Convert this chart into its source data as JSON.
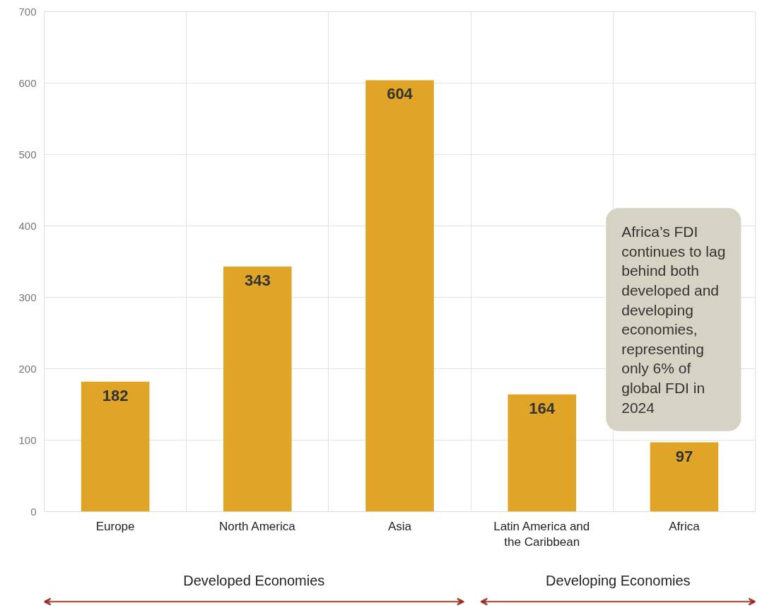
{
  "chart_data": {
    "type": "bar",
    "categories": [
      "Europe",
      "North America",
      "Asia",
      "Latin America and the Caribbean",
      "Africa"
    ],
    "values": [
      182,
      343,
      604,
      164,
      97
    ],
    "color": "#e0a526",
    "data_labels": true,
    "ylim": [
      0,
      700
    ],
    "yticks": [
      0,
      100,
      200,
      300,
      400,
      500,
      600,
      700
    ],
    "grid": true,
    "annotations": [
      "Africa’s FDI continues to lag behind both developed and developing economies, representing only 6% of global FDI in 2024",
      "Developed Economies",
      "Developing Economies"
    ]
  }
}
